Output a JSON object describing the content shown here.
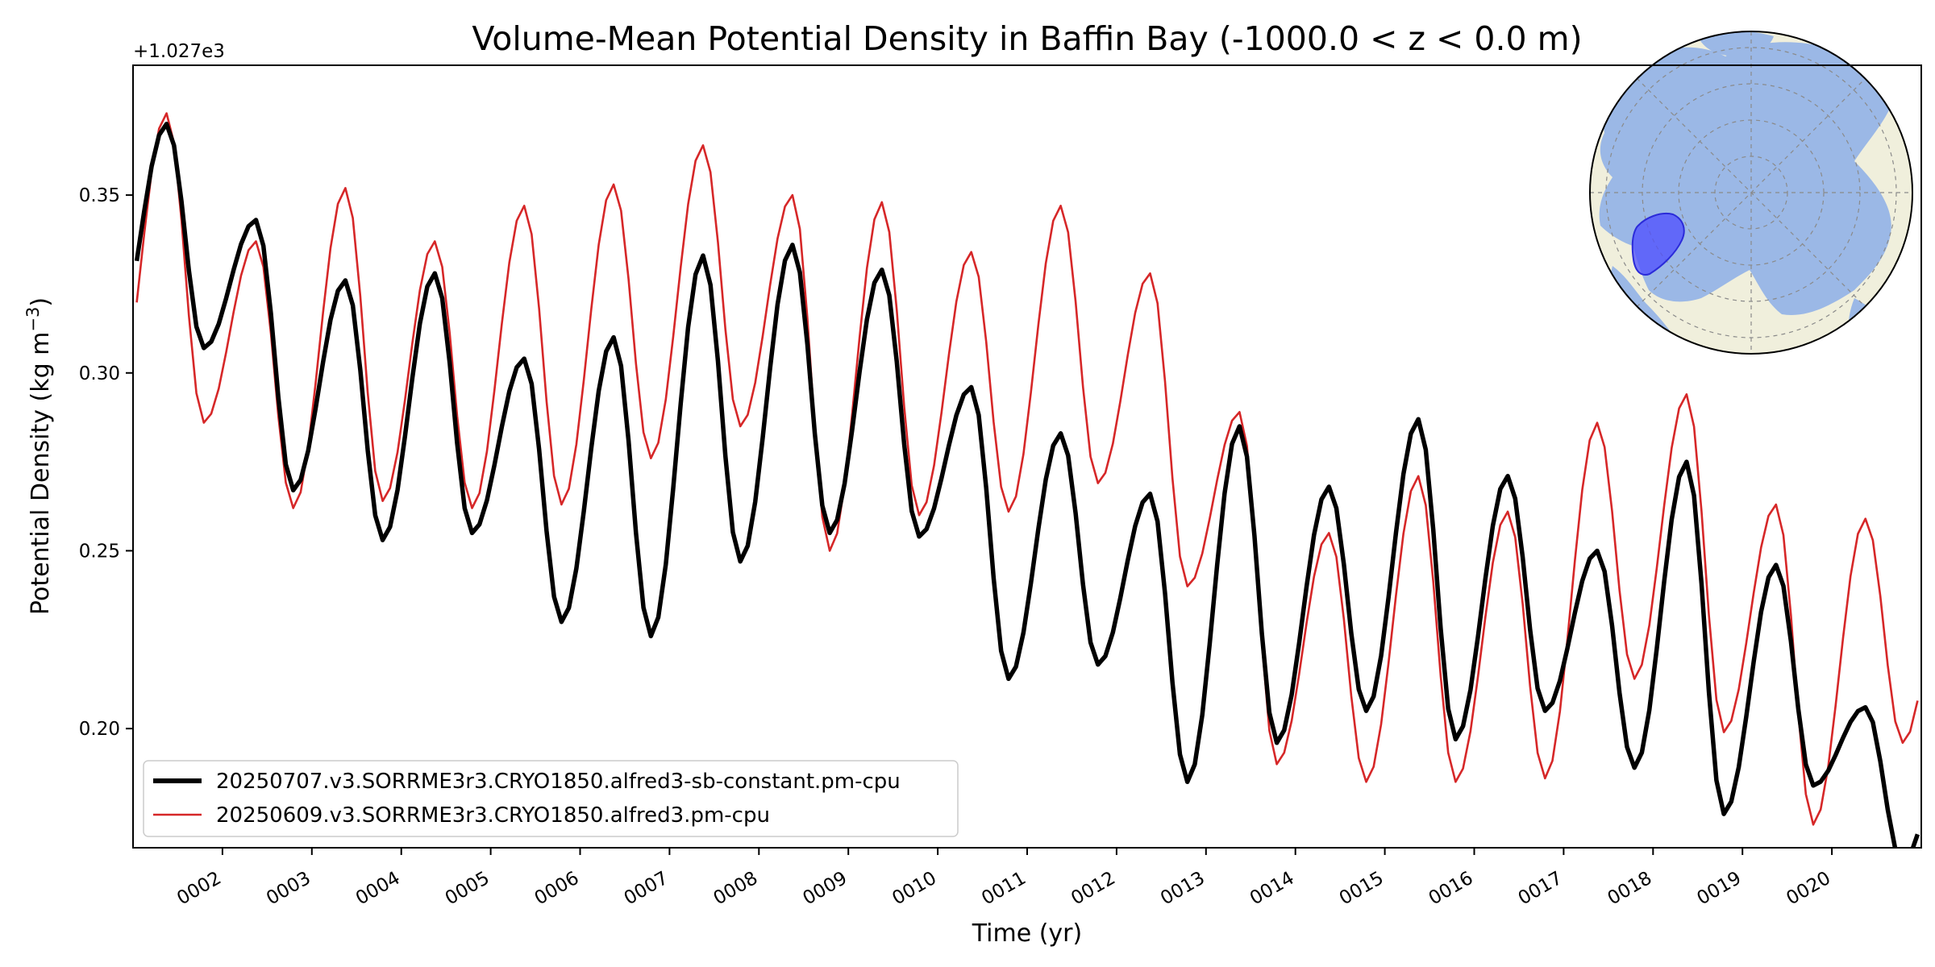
{
  "chart_data": {
    "type": "line",
    "title": "Volume-Mean Potential Density in Baffin Bay (-1000.0 < z < 0.0 m)",
    "xlabel": "Time (yr)",
    "ylabel": "Potential Density (kg m",
    "ylabel_sup": "−3",
    "ylabel_close": ")",
    "offset_label": "+1.027e3",
    "xlim": [
      1.0,
      21.0
    ],
    "ylim": [
      0.1665,
      0.3865
    ],
    "y_offset": 1027,
    "yticks": [
      0.2,
      0.25,
      0.3,
      0.35
    ],
    "ytick_labels": [
      "0.20",
      "0.25",
      "0.30",
      "0.35"
    ],
    "xticks": [
      2,
      3,
      4,
      5,
      6,
      7,
      8,
      9,
      10,
      11,
      12,
      13,
      14,
      15,
      16,
      17,
      18,
      19,
      20
    ],
    "xtick_labels": [
      "0002",
      "0003",
      "0004",
      "0005",
      "0006",
      "0007",
      "0008",
      "0009",
      "0010",
      "0011",
      "0012",
      "0013",
      "0014",
      "0015",
      "0016",
      "0017",
      "0018",
      "0019",
      "0020"
    ],
    "grid": false,
    "legend_position": "lower-left",
    "inset_map": "north-polar-stereographic map with Baffin Bay region highlighted",
    "series": [
      {
        "name": "20250707.v3.SORRME3r3.CRYO1850.alfred3-sb-constant.pm-cpu",
        "color": "#000000",
        "min_month": 9,
        "max_month": 4,
        "annual_min": [
          0.307,
          0.267,
          0.253,
          0.255,
          0.23,
          0.226,
          0.247,
          0.255,
          0.254,
          0.214,
          0.218,
          0.185,
          0.196,
          0.205,
          0.197,
          0.205,
          0.189,
          0.176,
          0.184,
          0.162
        ],
        "annual_max": [
          0.37,
          0.343,
          0.326,
          0.328,
          0.304,
          0.31,
          0.333,
          0.336,
          0.329,
          0.296,
          0.283,
          0.266,
          0.285,
          0.268,
          0.287,
          0.271,
          0.25,
          0.275,
          0.246,
          0.206
        ]
      },
      {
        "name": "20250609.v3.SORRME3r3.CRYO1850.alfred3.pm-cpu",
        "color": "#d62728",
        "min_month": 9,
        "max_month": 4,
        "annual_min": [
          0.286,
          0.262,
          0.264,
          0.262,
          0.263,
          0.276,
          0.285,
          0.25,
          0.26,
          0.261,
          0.269,
          0.24,
          0.19,
          0.185,
          0.185,
          0.186,
          0.214,
          0.199,
          0.173,
          0.196
        ],
        "annual_max": [
          0.373,
          0.337,
          0.352,
          0.337,
          0.347,
          0.353,
          0.364,
          0.35,
          0.348,
          0.334,
          0.347,
          0.328,
          0.289,
          0.255,
          0.271,
          0.261,
          0.286,
          0.294,
          0.263,
          0.259
        ]
      }
    ]
  }
}
